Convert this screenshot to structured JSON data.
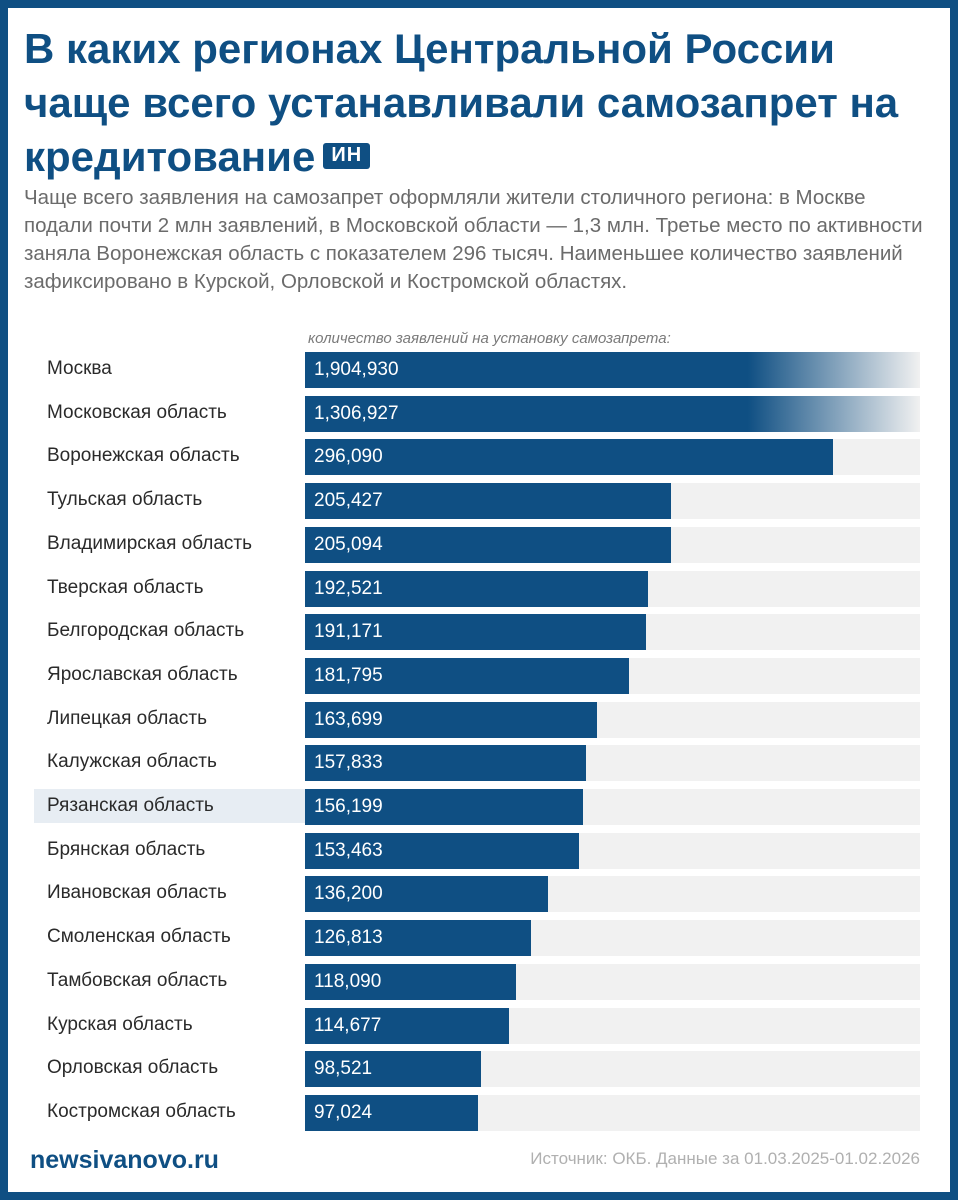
{
  "header": {
    "title": "В каких регионах Центральной России чаще всего устанавливали самозапрет на кредитование",
    "badge": "ИН",
    "subtitle": "Чаще всего заявления на самозапрет оформляли жители столичного региона: в Москве подали почти 2 млн заявлений, в Московской области — 1,3 млн. Третье место по активности заняла Воронежская область с показателем 296 тысяч. Наименьшее количество заявлений зафиксировано в Курской, Орловской и Костромской областях."
  },
  "colors": {
    "accent": "#0f4f83",
    "track": "#f1f1f1",
    "highlight": "#e7edf3"
  },
  "chart_data": {
    "type": "bar",
    "orientation": "horizontal",
    "axis_caption": "количество заявлений на установку самозапрета:",
    "xlim": [
      0,
      345000
    ],
    "truncated_categories": [
      "Москва",
      "Московская область"
    ],
    "highlighted_category": "Рязанская область",
    "categories": [
      "Москва",
      "Московская область",
      "Воронежская область",
      "Тульская область",
      "Владимирская область",
      "Тверская область",
      "Белгородская область",
      "Ярославская область",
      "Липецкая область",
      "Калужская область",
      "Рязанская область",
      "Брянская область",
      "Ивановская область",
      "Смоленская область",
      "Тамбовская область",
      "Курская область",
      "Орловская область",
      "Костромская область"
    ],
    "values": [
      1904930,
      1306927,
      296090,
      205427,
      205094,
      192521,
      191171,
      181795,
      163699,
      157833,
      156199,
      153463,
      136200,
      126813,
      118090,
      114677,
      98521,
      97024
    ],
    "value_labels": [
      "1,904,930",
      "1,306,927",
      "296,090",
      "205,427",
      "205,094",
      "192,521",
      "191,171",
      "181,795",
      "163,699",
      "157,833",
      "156,199",
      "153,463",
      "136,200",
      "126,813",
      "118,090",
      "114,677",
      "98,521",
      "97,024"
    ]
  },
  "footer": {
    "site": "newsivanovo.ru",
    "source": "Источник: ОКБ. Данные за 01.03.2025-01.02.2026"
  }
}
